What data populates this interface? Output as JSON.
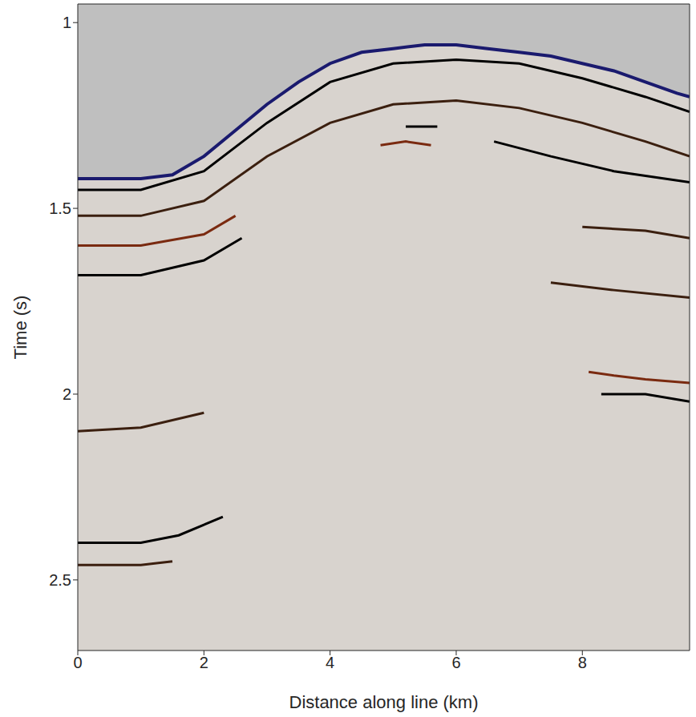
{
  "chart_data": {
    "type": "seismic_section",
    "xlabel": "Distance along line (km)",
    "ylabel": "Time (s)",
    "xlim": [
      0,
      9.7
    ],
    "ylim": [
      2.69,
      0.95
    ],
    "xticks": [
      0,
      2,
      4,
      6,
      8
    ],
    "yticks": [
      1,
      1.5,
      2,
      2.5
    ],
    "grid": false,
    "series": [
      {
        "type": "area",
        "color": "#bfbfbf",
        "x": [
          0,
          1,
          1.5,
          2,
          2.5,
          3,
          3.5,
          4,
          4.5,
          5,
          5.5,
          6,
          6.5,
          7,
          7.5,
          8,
          8.5,
          9,
          9.5,
          9.7
        ],
        "values": [
          1.42,
          1.42,
          1.41,
          1.36,
          1.29,
          1.22,
          1.16,
          1.11,
          1.08,
          1.07,
          1.06,
          1.06,
          1.07,
          1.08,
          1.09,
          1.11,
          1.13,
          1.16,
          1.19,
          1.2
        ]
      },
      {
        "type": "line",
        "color": "#000000",
        "x": [
          0,
          1,
          2,
          3,
          4,
          5,
          6,
          7,
          8,
          9,
          9.7
        ],
        "values": [
          1.45,
          1.45,
          1.4,
          1.27,
          1.16,
          1.11,
          1.1,
          1.11,
          1.15,
          1.2,
          1.24
        ]
      },
      {
        "type": "line",
        "color": "#3b1f0f",
        "x": [
          0,
          1,
          2,
          3,
          4,
          5,
          6,
          7,
          8,
          9,
          9.7
        ],
        "values": [
          1.52,
          1.52,
          1.48,
          1.36,
          1.27,
          1.22,
          1.21,
          1.23,
          1.27,
          1.32,
          1.36
        ]
      },
      {
        "type": "line",
        "color": "#7a2a10",
        "x": [
          0,
          1,
          2,
          2.5
        ],
        "values": [
          1.6,
          1.6,
          1.57,
          1.52
        ]
      },
      {
        "type": "line",
        "color": "#000000",
        "x": [
          0,
          1,
          2,
          2.6
        ],
        "values": [
          1.68,
          1.68,
          1.64,
          1.58
        ]
      },
      {
        "type": "line",
        "color": "#000000",
        "x": [
          6.6,
          7.5,
          8.5,
          9.7
        ],
        "values": [
          1.32,
          1.36,
          1.4,
          1.43
        ]
      },
      {
        "type": "line",
        "color": "#3b1f0f",
        "x": [
          8,
          9,
          9.7
        ],
        "values": [
          1.55,
          1.56,
          1.58
        ]
      },
      {
        "type": "line",
        "color": "#3b1f0f",
        "x": [
          7.5,
          8.5,
          9.7
        ],
        "values": [
          1.7,
          1.72,
          1.74
        ]
      },
      {
        "type": "line",
        "color": "#7a2a10",
        "x": [
          8.1,
          8.5,
          9,
          9.7
        ],
        "values": [
          1.94,
          1.95,
          1.96,
          1.97
        ]
      },
      {
        "type": "line",
        "color": "#000000",
        "x": [
          8.3,
          9,
          9.7
        ],
        "values": [
          2,
          2,
          2.02
        ]
      },
      {
        "type": "line",
        "color": "#3b1f0f",
        "x": [
          0,
          1,
          2
        ],
        "values": [
          2.1,
          2.09,
          2.05
        ]
      },
      {
        "type": "line",
        "color": "#000000",
        "x": [
          0,
          1,
          1.6,
          2.3
        ],
        "values": [
          2.4,
          2.4,
          2.38,
          2.33
        ]
      },
      {
        "type": "line",
        "color": "#3b1f0f",
        "x": [
          0,
          1,
          1.5
        ],
        "values": [
          2.46,
          2.46,
          2.45
        ]
      },
      {
        "type": "line",
        "color": "#7a2a10",
        "x": [
          4.8,
          5.2,
          5.6
        ],
        "values": [
          1.33,
          1.32,
          1.33
        ]
      },
      {
        "type": "line",
        "color": "#000000",
        "x": [
          5.2,
          5.7
        ],
        "values": [
          1.28,
          1.28
        ]
      }
    ]
  }
}
